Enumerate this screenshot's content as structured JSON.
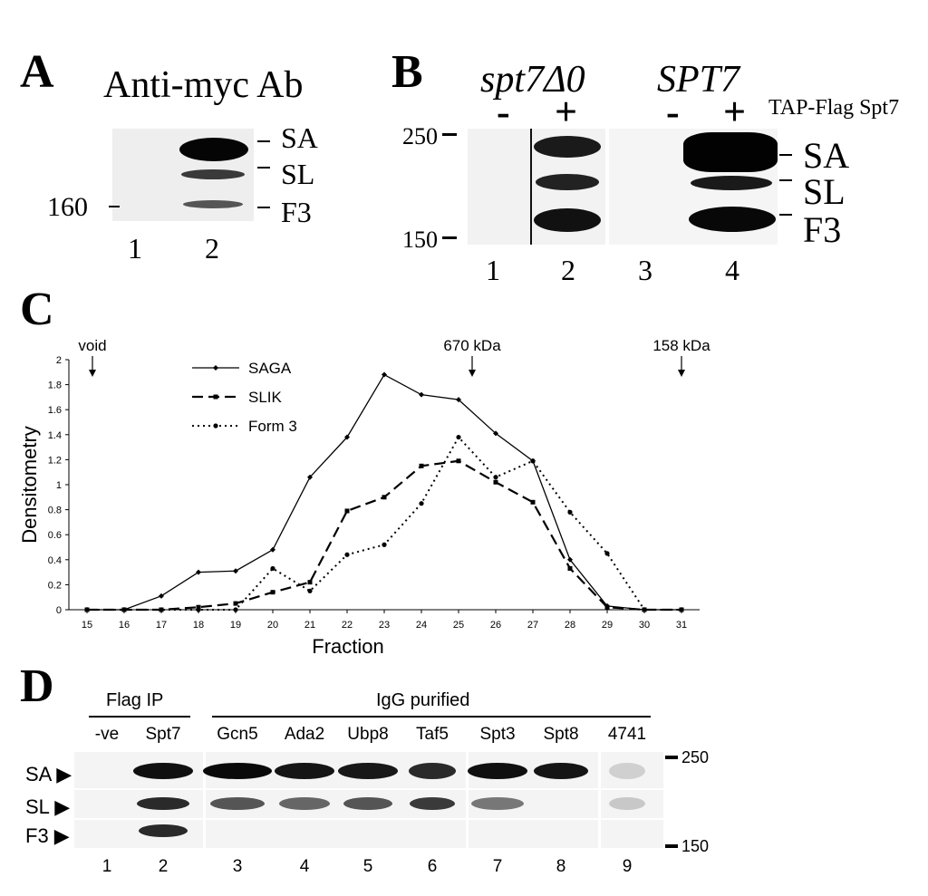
{
  "panelA": {
    "letter": "A",
    "title": "Anti-myc Ab",
    "marker": "160",
    "band_labels": [
      "SA",
      "SL",
      "F3"
    ],
    "lanes": [
      "1",
      "2"
    ]
  },
  "panelB": {
    "letter": "B",
    "strain1": "spt7Δ0",
    "strain2": "SPT7",
    "signs": [
      "-",
      "+",
      "-",
      "+"
    ],
    "construct_label": "TAP-Flag Spt7",
    "markers": [
      "250",
      "150"
    ],
    "band_labels": [
      "SA",
      "SL",
      "F3"
    ],
    "lanes": [
      "1",
      "2",
      "3",
      "4"
    ]
  },
  "panelC": {
    "letter": "C",
    "annotations": [
      "void",
      "670 kDa",
      "158 kDa"
    ]
  },
  "chart_data": {
    "type": "line",
    "title": "",
    "xlabel": "Fraction",
    "ylabel": "Densitometry",
    "x": [
      15,
      16,
      17,
      18,
      19,
      20,
      21,
      22,
      23,
      24,
      25,
      26,
      27,
      28,
      29,
      30,
      31
    ],
    "ylim": [
      0,
      2
    ],
    "yticks": [
      "0",
      "0.2",
      "0.4",
      "0.6",
      "0.8",
      "1",
      "1.2",
      "1.4",
      "1.6",
      "1.8",
      "2"
    ],
    "legend_position": "top-left",
    "grid": false,
    "series": [
      {
        "name": "SAGA",
        "style": "solid",
        "marker": "diamond",
        "values": [
          0.0,
          0.0,
          0.11,
          0.3,
          0.31,
          0.48,
          1.06,
          1.38,
          1.88,
          1.72,
          1.68,
          1.41,
          1.19,
          0.4,
          0.03,
          0.0,
          0.0
        ]
      },
      {
        "name": "SLIK",
        "style": "dashed",
        "marker": "square",
        "values": [
          0.0,
          0.0,
          0.0,
          0.02,
          0.05,
          0.14,
          0.22,
          0.79,
          0.9,
          1.15,
          1.19,
          1.02,
          0.86,
          0.33,
          0.02,
          0.0,
          0.0
        ]
      },
      {
        "name": "Form 3",
        "style": "dotted",
        "marker": "circle",
        "values": [
          0.0,
          0.0,
          0.0,
          0.0,
          0.0,
          0.33,
          0.15,
          0.44,
          0.52,
          0.85,
          1.38,
          1.06,
          1.19,
          0.78,
          0.45,
          0.0,
          0.0
        ]
      }
    ]
  },
  "panelD": {
    "letter": "D",
    "group1": "Flag IP",
    "group2": "IgG purified",
    "columns": [
      "-ve",
      "Spt7",
      "Gcn5",
      "Ada2",
      "Ubp8",
      "Taf5",
      "Spt3",
      "Spt8",
      "4741"
    ],
    "row_labels": [
      "SA",
      "SL",
      "F3"
    ],
    "markers": [
      "250",
      "150"
    ],
    "lanes": [
      "1",
      "2",
      "3",
      "4",
      "5",
      "6",
      "7",
      "8",
      "9"
    ]
  }
}
